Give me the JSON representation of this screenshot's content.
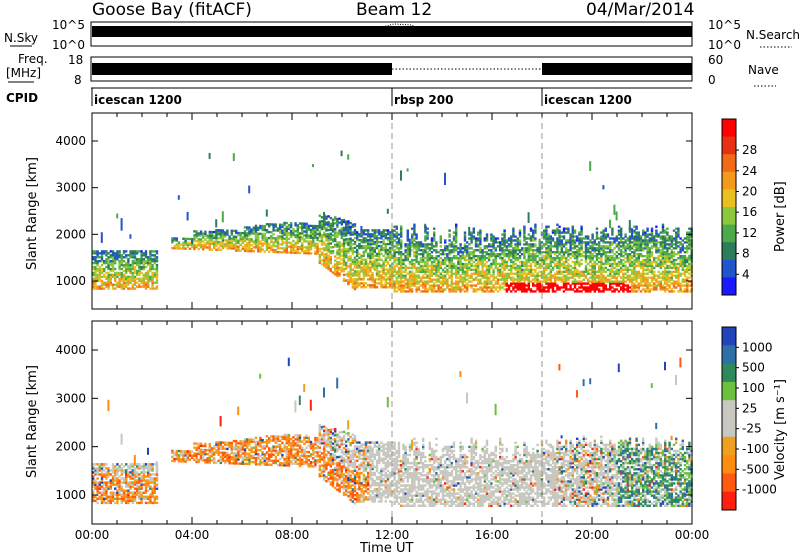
{
  "header": {
    "station": "Goose Bay (fitACF)",
    "beam": "Beam 12",
    "date": "04/Mar/2014"
  },
  "nsky_panel": {
    "left_label": "N.Sky",
    "right_label": "N.Search",
    "left_ticks": [
      "10^5",
      "10^0"
    ],
    "right_ticks": [
      "10^5",
      "10^0"
    ]
  },
  "freq_panel": {
    "left_label_1": "Freq.",
    "left_label_2": "[MHz]",
    "right_label": "Nave",
    "left_ticks": [
      "18",
      "8"
    ],
    "right_ticks": [
      "60",
      "0"
    ]
  },
  "cpid": {
    "label": "CPID",
    "segments": [
      {
        "name": "icescan 1200",
        "start_hour": 0
      },
      {
        "name": "rbsp 200",
        "start_hour": 12
      },
      {
        "name": "icescan 1200",
        "start_hour": 18
      }
    ]
  },
  "time_axis": {
    "label": "Time UT",
    "ticks": [
      "00:00",
      "04:00",
      "08:00",
      "12:00",
      "16:00",
      "20:00",
      "00:00"
    ]
  },
  "chart_data": [
    {
      "type": "heatmap",
      "name": "power",
      "ylabel": "Slant Range [km]",
      "xlabel": "",
      "xlim": [
        0,
        24
      ],
      "ylim": [
        400,
        4600
      ],
      "yticks": [
        "1000",
        "2000",
        "3000",
        "4000"
      ],
      "colorbar_label": "Power [dB]",
      "colorbar_ticks": [
        "4",
        "8",
        "12",
        "16",
        "20",
        "24",
        "28"
      ],
      "colors": [
        "#1a1aff",
        "#2255cc",
        "#2e7d5a",
        "#4caa4a",
        "#8cc83c",
        "#e8c020",
        "#f39a1c",
        "#f06a18",
        "#e83012",
        "#ff0000"
      ],
      "vertical_dashed_lines": [
        12,
        18
      ]
    },
    {
      "type": "heatmap",
      "name": "velocity",
      "ylabel": "Slant Range [km]",
      "xlabel": "Time UT",
      "xlim": [
        0,
        24
      ],
      "ylim": [
        400,
        4600
      ],
      "yticks": [
        "1000",
        "2000",
        "3000",
        "4000"
      ],
      "colorbar_label": "Velocity [m s⁻¹]",
      "colorbar_ticks": [
        "1000",
        "500",
        "100",
        "25",
        "-25",
        "-100",
        "-500",
        "-1000"
      ],
      "colors": [
        "#2244bb",
        "#2f6fa8",
        "#2f8a5a",
        "#6cc040",
        "#c8c8c0",
        "#c8c8c0",
        "#f0a020",
        "#ff8c10",
        "#ff5a10",
        "#ff2010"
      ],
      "vertical_dashed_lines": [
        12,
        18
      ]
    }
  ]
}
